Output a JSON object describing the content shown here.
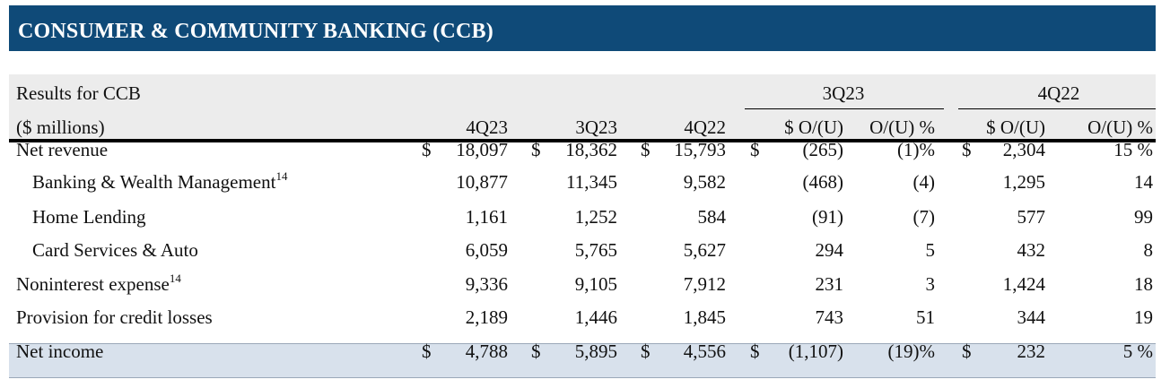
{
  "title": "CONSUMER & COMMUNITY BANKING (CCB)",
  "header": {
    "label_line1": "Results for CCB",
    "label_line2": "($ millions)",
    "group1": "3Q23",
    "group2": "4Q22",
    "columns": [
      "4Q23",
      "3Q23",
      "4Q22",
      "$ O/(U)",
      "O/(U) %",
      "$ O/(U)",
      "O/(U) %"
    ]
  },
  "rows": [
    {
      "label": "Net revenue",
      "sup": "",
      "indent": false,
      "cells": [
        {
          "cur": "$",
          "val": "18,097"
        },
        {
          "cur": "$",
          "val": "18,362"
        },
        {
          "cur": "$",
          "val": "15,793"
        },
        {
          "cur": "$",
          "val": "(265)"
        },
        {
          "cur": "",
          "val": "(1)%"
        },
        {
          "cur": "$",
          "val": "2,304"
        },
        {
          "cur": "",
          "val": "15 %"
        }
      ]
    },
    {
      "label": "Banking & Wealth Management",
      "sup": "14",
      "indent": true,
      "cells": [
        {
          "cur": "",
          "val": "10,877"
        },
        {
          "cur": "",
          "val": "11,345"
        },
        {
          "cur": "",
          "val": "9,582"
        },
        {
          "cur": "",
          "val": "(468)"
        },
        {
          "cur": "",
          "val": "(4)"
        },
        {
          "cur": "",
          "val": "1,295"
        },
        {
          "cur": "",
          "val": "14"
        }
      ]
    },
    {
      "label": "Home Lending",
      "sup": "",
      "indent": true,
      "cells": [
        {
          "cur": "",
          "val": "1,161"
        },
        {
          "cur": "",
          "val": "1,252"
        },
        {
          "cur": "",
          "val": "584"
        },
        {
          "cur": "",
          "val": "(91)"
        },
        {
          "cur": "",
          "val": "(7)"
        },
        {
          "cur": "",
          "val": "577"
        },
        {
          "cur": "",
          "val": "99"
        }
      ]
    },
    {
      "label": "Card Services & Auto",
      "sup": "",
      "indent": true,
      "cells": [
        {
          "cur": "",
          "val": "6,059"
        },
        {
          "cur": "",
          "val": "5,765"
        },
        {
          "cur": "",
          "val": "5,627"
        },
        {
          "cur": "",
          "val": "294"
        },
        {
          "cur": "",
          "val": "5"
        },
        {
          "cur": "",
          "val": "432"
        },
        {
          "cur": "",
          "val": "8"
        }
      ]
    },
    {
      "label": "Noninterest expense",
      "sup": "14",
      "indent": false,
      "cells": [
        {
          "cur": "",
          "val": "9,336"
        },
        {
          "cur": "",
          "val": "9,105"
        },
        {
          "cur": "",
          "val": "7,912"
        },
        {
          "cur": "",
          "val": "231"
        },
        {
          "cur": "",
          "val": "3"
        },
        {
          "cur": "",
          "val": "1,424"
        },
        {
          "cur": "",
          "val": "18"
        }
      ]
    },
    {
      "label": "Provision for credit losses",
      "sup": "",
      "indent": false,
      "cells": [
        {
          "cur": "",
          "val": "2,189"
        },
        {
          "cur": "",
          "val": "1,446"
        },
        {
          "cur": "",
          "val": "1,845"
        },
        {
          "cur": "",
          "val": "743"
        },
        {
          "cur": "",
          "val": "51"
        },
        {
          "cur": "",
          "val": "344"
        },
        {
          "cur": "",
          "val": "19"
        }
      ]
    },
    {
      "label": "Net income",
      "sup": "",
      "indent": false,
      "cells": [
        {
          "cur": "$",
          "val": "4,788"
        },
        {
          "cur": "$",
          "val": "5,895"
        },
        {
          "cur": "$",
          "val": "4,556"
        },
        {
          "cur": "$",
          "val": "(1,107)"
        },
        {
          "cur": "",
          "val": "(19)%"
        },
        {
          "cur": "$",
          "val": "232"
        },
        {
          "cur": "",
          "val": "5 %"
        }
      ]
    }
  ]
}
